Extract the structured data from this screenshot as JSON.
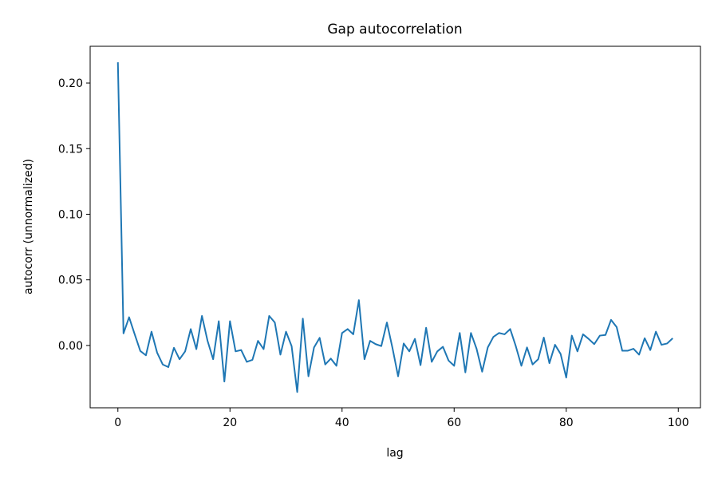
{
  "chart_data": {
    "type": "line",
    "title": "Gap autocorrelation",
    "xlabel": "lag",
    "ylabel": "autocorr (unnormalized)",
    "xlim": [
      -4.95,
      103.95
    ],
    "ylim": [
      -0.0475,
      0.228
    ],
    "xticks": [
      0,
      20,
      40,
      60,
      80,
      100
    ],
    "xtick_labels": [
      "0",
      "20",
      "40",
      "60",
      "80",
      "100"
    ],
    "yticks": [
      0.0,
      0.05,
      0.1,
      0.15,
      0.2
    ],
    "ytick_labels": [
      "0.00",
      "0.05",
      "0.10",
      "0.15",
      "0.20"
    ],
    "grid": false,
    "series": [
      {
        "color": "#1f77b4",
        "x": [
          0,
          1,
          2,
          3,
          4,
          5,
          6,
          7,
          8,
          9,
          10,
          11,
          12,
          13,
          14,
          15,
          16,
          17,
          18,
          19,
          20,
          21,
          22,
          23,
          24,
          25,
          26,
          27,
          28,
          29,
          30,
          31,
          32,
          33,
          34,
          35,
          36,
          37,
          38,
          39,
          40,
          41,
          42,
          43,
          44,
          45,
          46,
          47,
          48,
          49,
          50,
          51,
          52,
          53,
          54,
          55,
          56,
          57,
          58,
          59,
          60,
          61,
          62,
          63,
          64,
          65,
          66,
          67,
          68,
          69,
          70,
          71,
          72,
          73,
          74,
          75,
          76,
          77,
          78,
          79,
          80,
          81,
          82,
          83,
          84,
          85,
          86,
          87,
          88,
          89,
          90,
          91,
          92,
          93,
          94,
          95,
          96,
          97,
          98,
          99
        ],
        "values": [
          0.2158,
          0.0092,
          0.0215,
          0.0085,
          -0.0042,
          -0.0075,
          0.0105,
          -0.0055,
          -0.0145,
          -0.0165,
          -0.0018,
          -0.0105,
          -0.0045,
          0.0125,
          -0.0028,
          0.0225,
          0.0035,
          -0.0105,
          0.0185,
          -0.0275,
          0.0185,
          -0.0045,
          -0.0035,
          -0.0125,
          -0.011,
          0.0035,
          -0.0028,
          0.0225,
          0.0175,
          -0.007,
          0.0105,
          -0.0005,
          -0.0355,
          0.0205,
          -0.0235,
          -0.0015,
          0.0058,
          -0.0145,
          -0.01,
          -0.0155,
          0.0095,
          0.0125,
          0.0085,
          0.0345,
          -0.0105,
          0.0035,
          0.001,
          -0.0005,
          0.0175,
          -0.002,
          -0.0235,
          0.0015,
          -0.0045,
          0.005,
          -0.015,
          0.0135,
          -0.0125,
          -0.0045,
          -0.001,
          -0.0115,
          -0.0155,
          0.0095,
          -0.0205,
          0.0095,
          -0.0025,
          -0.02,
          -0.0015,
          0.0065,
          0.0095,
          0.0085,
          0.0125,
          -0.0005,
          -0.0155,
          -0.0015,
          -0.0145,
          -0.0105,
          0.006,
          -0.0135,
          0.0005,
          -0.0065,
          -0.0245,
          0.0075,
          -0.0045,
          0.0085,
          0.005,
          0.001,
          0.0075,
          0.008,
          0.0195,
          0.014,
          -0.004,
          -0.004,
          -0.0025,
          -0.007,
          0.0055,
          -0.0035,
          0.0105,
          0.0005,
          0.0015,
          0.0055
        ]
      }
    ]
  }
}
